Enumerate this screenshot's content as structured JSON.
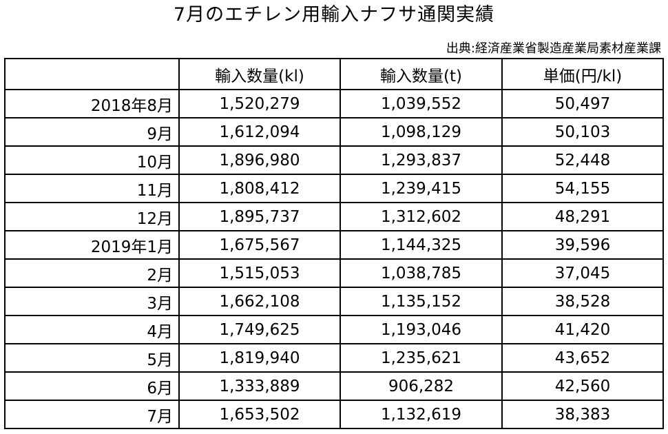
{
  "title": "7月のエチレン用輸入ナフサ通関実績",
  "source": "出典:経済産業省製造産業局素材産業課",
  "table": {
    "headers": [
      "",
      "輸入数量(kl)",
      "輸入数量(t)",
      "単価(円/kl)"
    ],
    "rows": [
      {
        "period": "2018年8月",
        "volume_kl": "1,520,279",
        "volume_t": "1,039,552",
        "price": "50,497"
      },
      {
        "period": "9月",
        "volume_kl": "1,612,094",
        "volume_t": "1,098,129",
        "price": "50,103"
      },
      {
        "period": "10月",
        "volume_kl": "1,896,980",
        "volume_t": "1,293,837",
        "price": "52,448"
      },
      {
        "period": "11月",
        "volume_kl": "1,808,412",
        "volume_t": "1,239,415",
        "price": "54,155"
      },
      {
        "period": "12月",
        "volume_kl": "1,895,737",
        "volume_t": "1,312,602",
        "price": "48,291"
      },
      {
        "period": "2019年1月",
        "volume_kl": "1,675,567",
        "volume_t": "1,144,325",
        "price": "39,596"
      },
      {
        "period": "2月",
        "volume_kl": "1,515,053",
        "volume_t": "1,038,785",
        "price": "37,045"
      },
      {
        "period": "3月",
        "volume_kl": "1,662,108",
        "volume_t": "1,135,152",
        "price": "38,528"
      },
      {
        "period": "4月",
        "volume_kl": "1,749,625",
        "volume_t": "1,193,046",
        "price": "41,420"
      },
      {
        "period": "5月",
        "volume_kl": "1,819,940",
        "volume_t": "1,235,621",
        "price": "43,652"
      },
      {
        "period": "6月",
        "volume_kl": "1,333,889",
        "volume_t": "906,282",
        "price": "42,560"
      },
      {
        "period": "7月",
        "volume_kl": "1,653,502",
        "volume_t": "1,132,619",
        "price": "38,383"
      }
    ]
  }
}
